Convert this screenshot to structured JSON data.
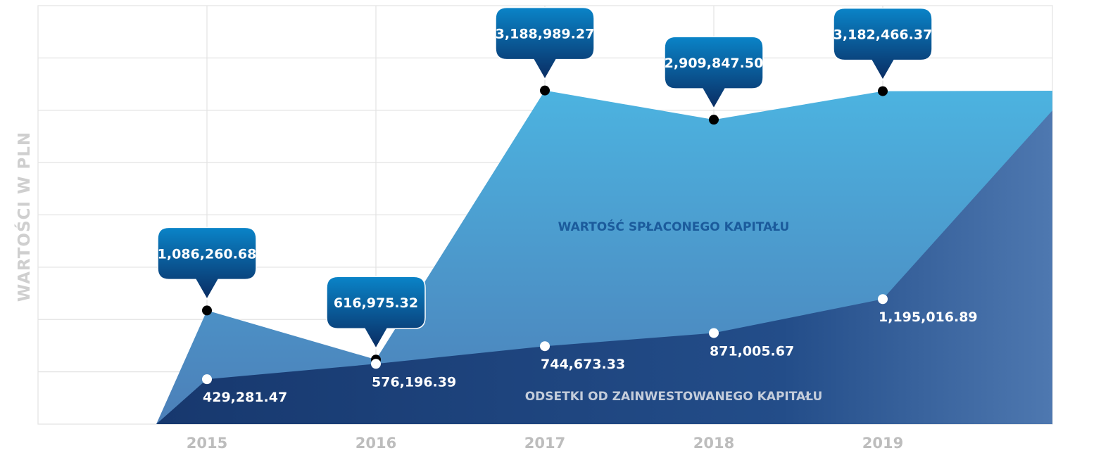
{
  "chart_data": {
    "type": "area",
    "ylabel": "WARTOŚCI W PLN",
    "xlabel": "",
    "categories": [
      "2015",
      "2016",
      "2017",
      "2018",
      "2019"
    ],
    "grid": true,
    "series": [
      {
        "key": "upper",
        "name": "WARTOŚĆ SPŁACONEGO KAPITAŁU",
        "values": [
          1086260.68,
          616975.32,
          3188989.27,
          2909847.5,
          3182466.37
        ],
        "labels": [
          "1,086,260.68",
          "616,975.32",
          "3,188,989.27",
          "2,909,847.50",
          "3,182,466.37"
        ]
      },
      {
        "key": "lower",
        "name": "ODSETKI OD ZAINWESTOWANEGO KAPITAŁU",
        "values": [
          429281.47,
          576196.39,
          744673.33,
          871005.67,
          1195016.89
        ],
        "labels": [
          "429,281.47",
          "576,196.39",
          "744,673.33",
          "871,005.67",
          "1,195,016.89"
        ]
      }
    ],
    "colors": {
      "upper_area": "#4fa9d8",
      "lower_area": "#1b3f78",
      "callout_top": "#0a80c4",
      "callout_bottom": "#0b2a60",
      "marker_upper": "#000000",
      "marker_lower": "#ffffff"
    }
  }
}
